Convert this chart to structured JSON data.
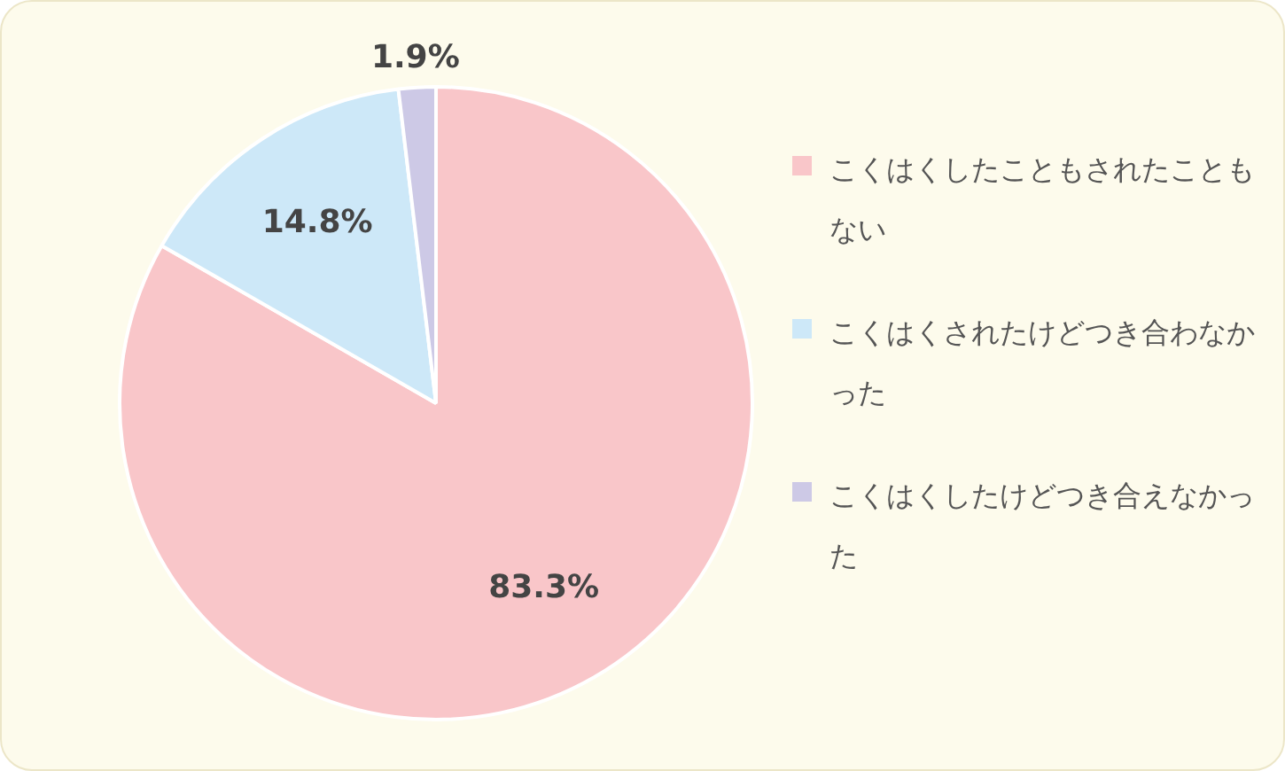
{
  "chart_data": {
    "type": "pie",
    "categories": [
      "こくはくしたこともされたこともない",
      "こくはくされたけどつき合わなかった",
      "こくはくしたけどつき合えなかった"
    ],
    "values": [
      83.3,
      14.8,
      1.9
    ],
    "colors": [
      "#f9c6c9",
      "#cde8f8",
      "#cdc9e6"
    ],
    "value_labels": [
      "83.3%",
      "14.8%",
      "1.9%"
    ],
    "legend": "right"
  }
}
